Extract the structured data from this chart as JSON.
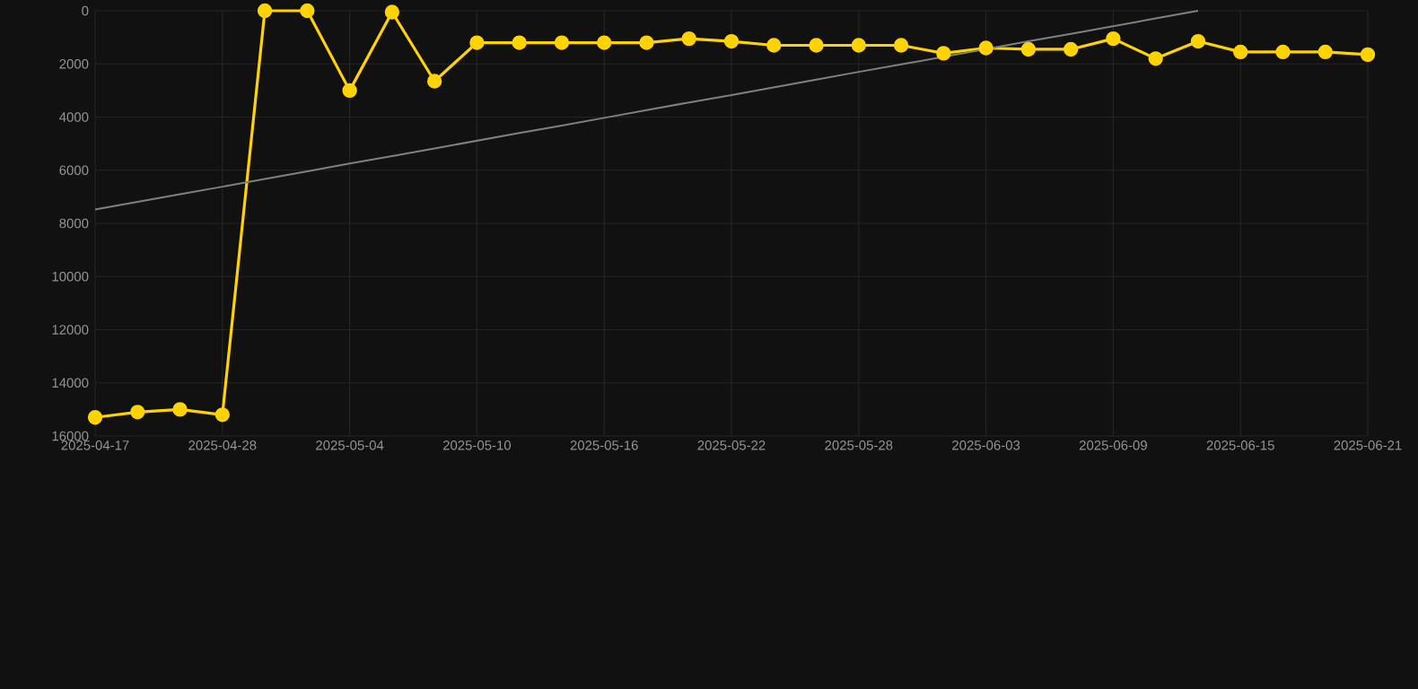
{
  "chart_data": {
    "type": "line",
    "categories": [
      "2025-04-17",
      null,
      null,
      "2025-04-28",
      null,
      null,
      "2025-05-04",
      null,
      null,
      "2025-05-10",
      null,
      null,
      "2025-05-16",
      null,
      null,
      "2025-05-22",
      null,
      null,
      "2025-05-28",
      null,
      null,
      "2025-06-03",
      null,
      null,
      "2025-06-09",
      null,
      null,
      "2025-06-15",
      null,
      null,
      "2025-06-21"
    ],
    "series": [
      {
        "color": "#ffd300",
        "marker": "circle",
        "values": [
          15300,
          15100,
          15000,
          15200,
          0,
          0,
          3000,
          50,
          2650,
          1200,
          1200,
          1200,
          1200,
          1200,
          1050,
          1150,
          1300,
          1300,
          1300,
          1300,
          1600,
          1400,
          1450,
          1450,
          1050,
          1800,
          1150,
          1550,
          1550,
          1550,
          1650
        ]
      },
      {
        "type": "line",
        "color": "#808080",
        "marker": "none",
        "values": [
          7480,
          7190,
          6900,
          6620,
          6330,
          6040,
          5750,
          5470,
          5180,
          4890,
          4600,
          4320,
          4030,
          3740,
          3450,
          3170,
          2880,
          2590,
          2300,
          2020,
          1730,
          1440,
          1150,
          870,
          580,
          290,
          0,
          null,
          null,
          null,
          null
        ]
      }
    ],
    "ylim": [
      16000,
      0
    ],
    "yticks": [
      0,
      2000,
      4000,
      6000,
      8000,
      10000,
      12000,
      14000,
      16000
    ],
    "grid": true,
    "legend": false
  }
}
